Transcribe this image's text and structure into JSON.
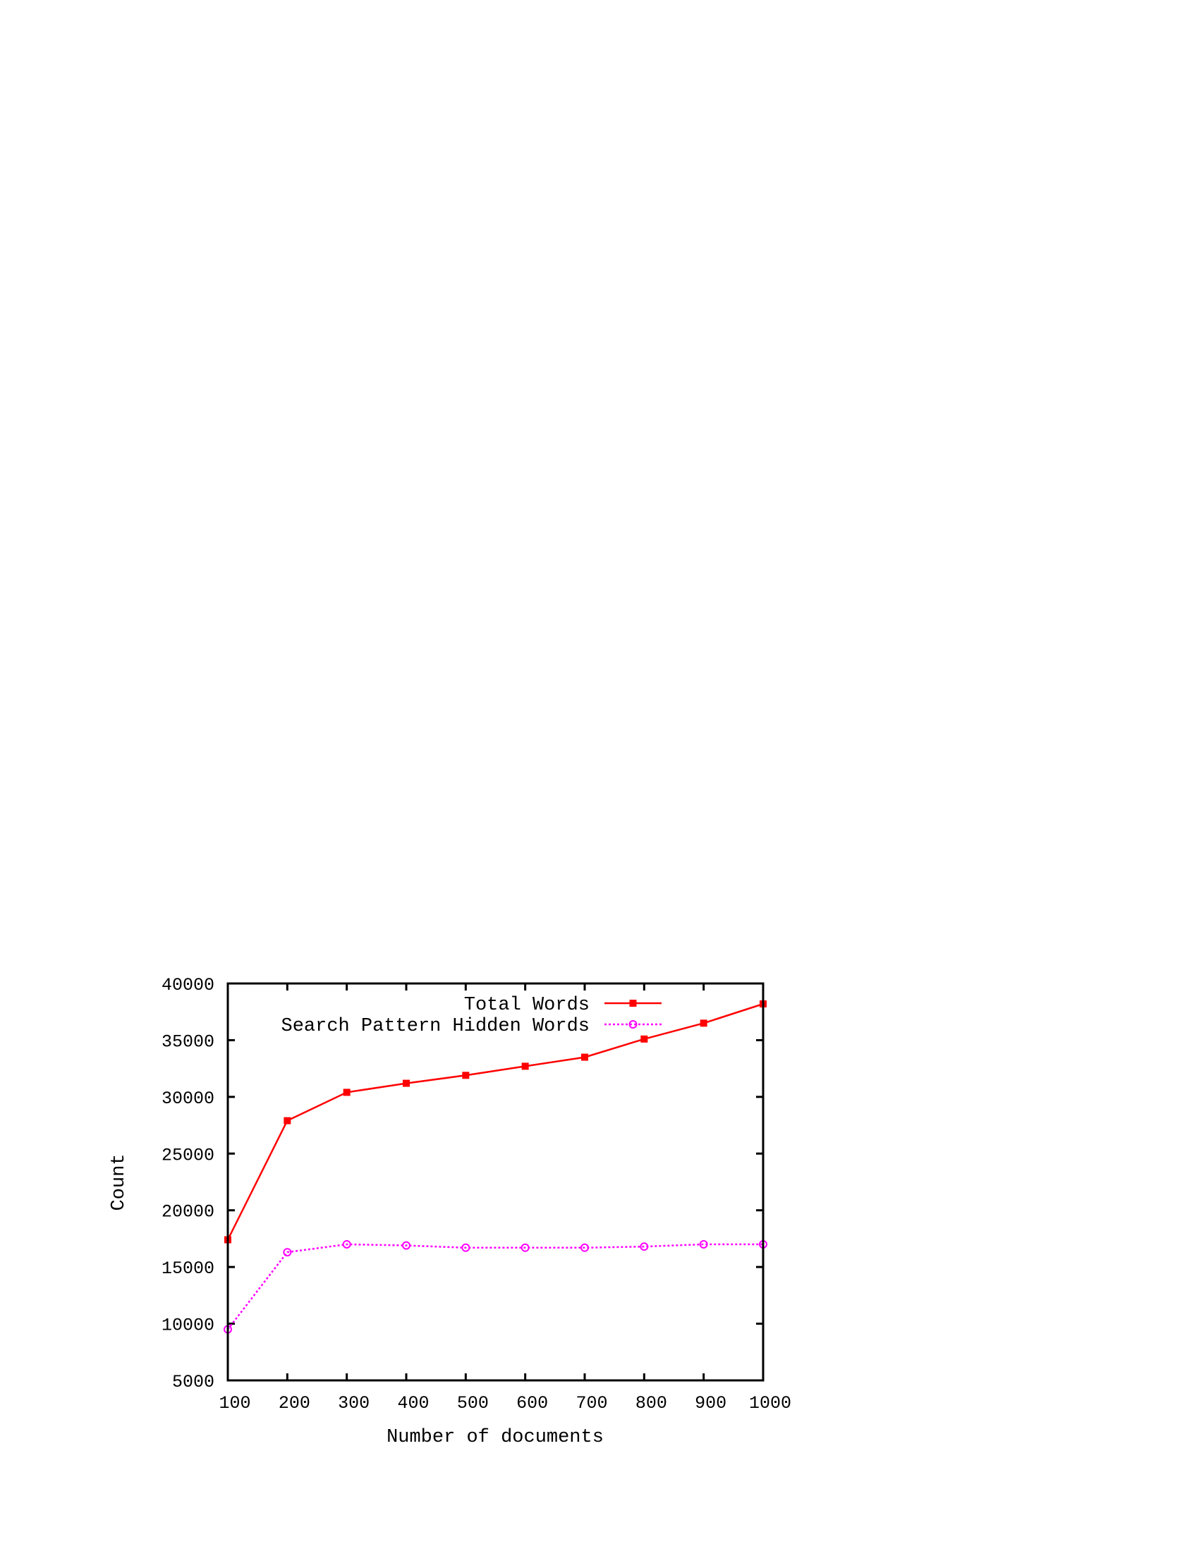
{
  "chart_data": {
    "type": "line",
    "title": "",
    "xlabel": "Number of documents",
    "ylabel": "Count",
    "x": [
      100,
      200,
      300,
      400,
      500,
      600,
      700,
      800,
      900,
      1000
    ],
    "xlim": [
      100,
      1000
    ],
    "ylim": [
      5000,
      40000
    ],
    "xticks": [
      "100",
      "200",
      "300",
      "400",
      "500",
      "600",
      "700",
      "800",
      "900",
      "1000"
    ],
    "yticks": [
      "5000",
      "10000",
      "15000",
      "20000",
      "25000",
      "30000",
      "35000",
      "40000"
    ],
    "grid": false,
    "legend_position": "top-right",
    "series": [
      {
        "name": "Total Words",
        "values": [
          17400,
          27900,
          30400,
          31200,
          31900,
          32700,
          33500,
          35100,
          36500,
          38200
        ],
        "color": "#ff0000",
        "line_style": "solid",
        "marker": "filled-square"
      },
      {
        "name": "Search Pattern Hidden Words",
        "values": [
          9500,
          16300,
          17000,
          16900,
          16700,
          16700,
          16700,
          16800,
          17000,
          17000
        ],
        "color": "#ff00ff",
        "line_style": "dotted",
        "marker": "open-circle"
      }
    ]
  }
}
